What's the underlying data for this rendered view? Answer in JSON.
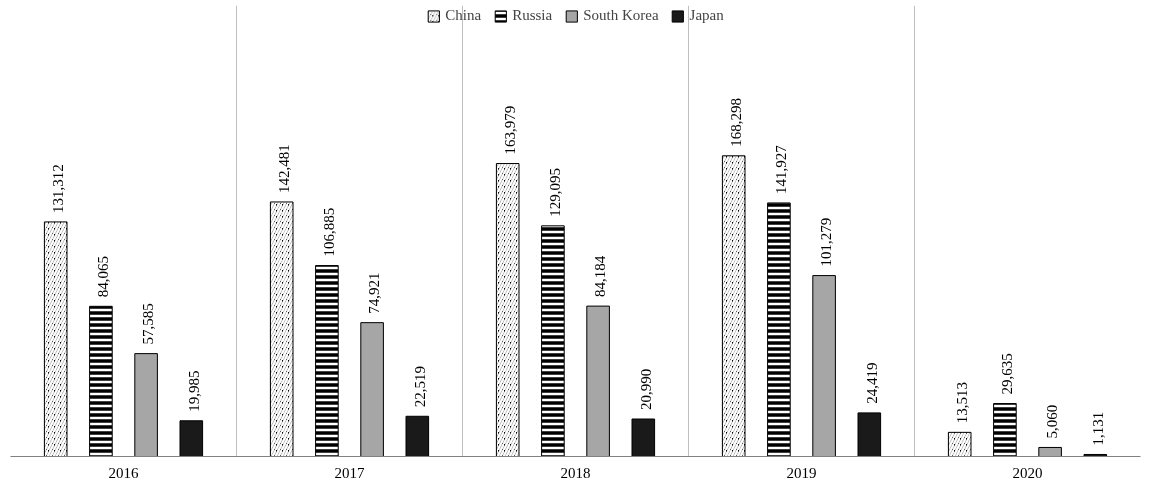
{
  "chart_data": {
    "type": "bar",
    "categories": [
      "2016",
      "2017",
      "2018",
      "2019",
      "2020"
    ],
    "series": [
      {
        "name": "China",
        "color": "#000000",
        "values": [
          131312,
          142481,
          163979,
          168298,
          13513
        ],
        "value_labels": [
          "131,312",
          "142,481",
          "163,979",
          "168,298",
          "13,513"
        ]
      },
      {
        "name": "Russia",
        "color": "#000000",
        "values": [
          84065,
          106885,
          129095,
          141927,
          29635
        ],
        "value_labels": [
          "84,065",
          "106,885",
          "129,095",
          "141,927",
          "29,635"
        ]
      },
      {
        "name": "South Korea",
        "color": "#a6a6a6",
        "values": [
          57585,
          74921,
          84184,
          101279,
          5060
        ],
        "value_labels": [
          "57,585",
          "74,921",
          "84,184",
          "101,279",
          "5,060"
        ]
      },
      {
        "name": "Japan",
        "color": "#1a1a1a",
        "values": [
          19985,
          22519,
          20990,
          24419,
          1131
        ],
        "value_labels": [
          "19,985",
          "22,519",
          "20,990",
          "24,419",
          "1,131"
        ]
      }
    ],
    "legend": "top",
    "grid": "x"
  }
}
